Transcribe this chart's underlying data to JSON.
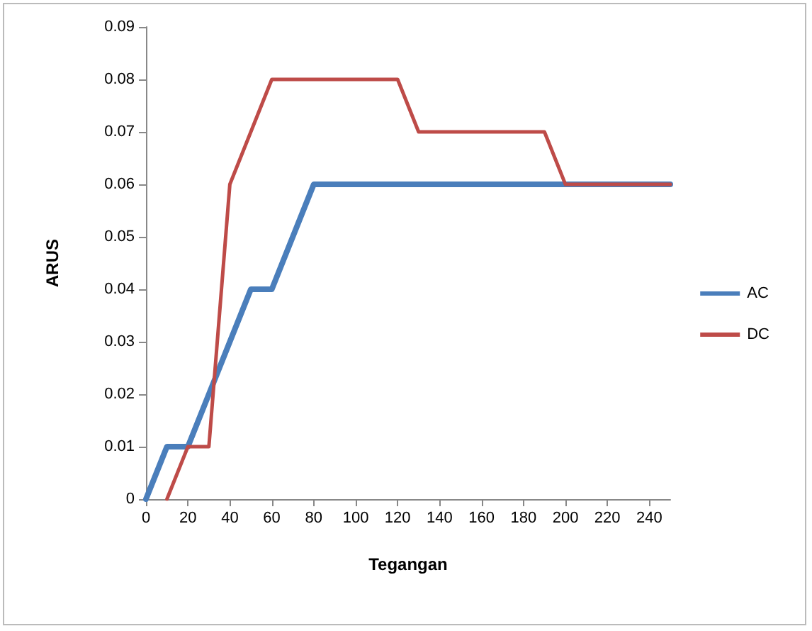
{
  "chart_data": {
    "type": "line",
    "xlabel": "Tegangan",
    "ylabel": "ARUS",
    "xlim": [
      0,
      250
    ],
    "xticks": [
      0,
      20,
      40,
      60,
      80,
      100,
      120,
      140,
      160,
      180,
      200,
      220,
      240
    ],
    "ylim": [
      0,
      0.09
    ],
    "yticks": [
      0,
      0.01,
      0.02,
      0.03,
      0.04,
      0.05,
      0.06,
      0.07,
      0.08,
      0.09
    ],
    "series": [
      {
        "name": "AC",
        "color": "#4a7ebb",
        "x": [
          0,
          10,
          20,
          50,
          60,
          80,
          200,
          250
        ],
        "values": [
          0,
          0.01,
          0.01,
          0.04,
          0.04,
          0.06,
          0.06,
          0.06
        ]
      },
      {
        "name": "DC",
        "color": "#be4b48",
        "x": [
          10,
          20,
          30,
          40,
          60,
          120,
          130,
          190,
          200,
          250
        ],
        "values": [
          0,
          0.01,
          0.01,
          0.06,
          0.08,
          0.08,
          0.07,
          0.07,
          0.06,
          0.06
        ]
      }
    ],
    "legend": "right",
    "grid": false,
    "marker": "none",
    "line_style": "solid"
  }
}
